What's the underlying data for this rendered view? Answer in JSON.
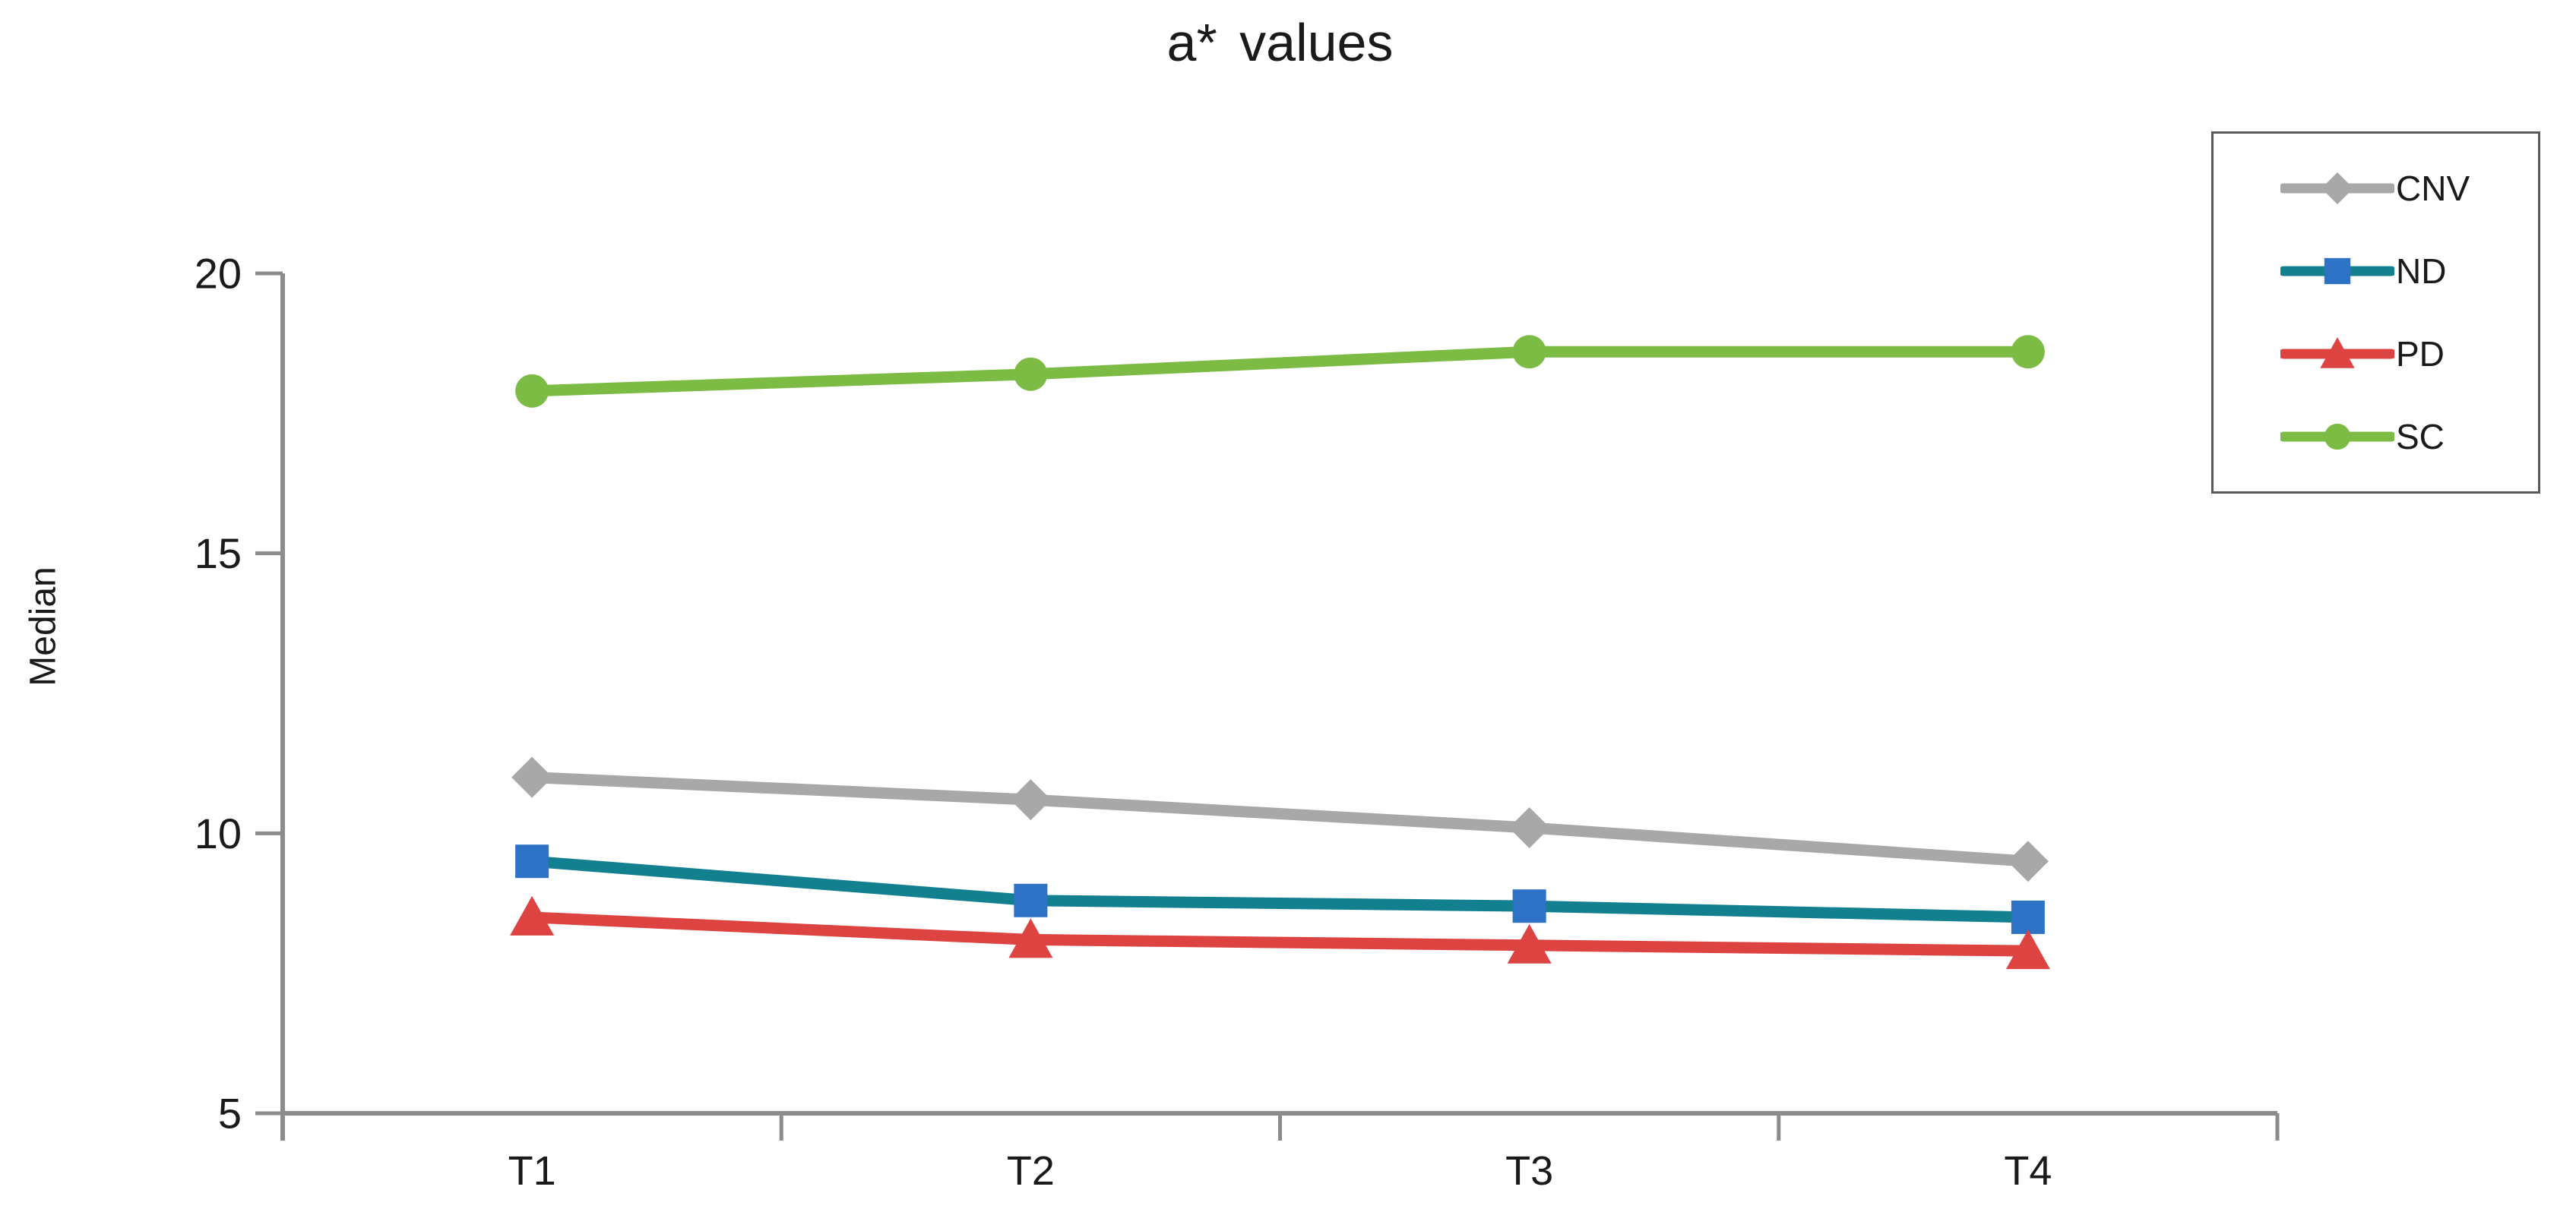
{
  "title": "a* values",
  "chart_data": {
    "type": "line",
    "title": "a* values",
    "xlabel": "",
    "ylabel": "Median",
    "categories": [
      "T1",
      "T2",
      "T3",
      "T4"
    ],
    "series": [
      {
        "name": "CNV",
        "color": "#A8A8A8",
        "marker": "diamond",
        "marker_color": "#A8A8A8",
        "values": [
          11.0,
          10.6,
          10.1,
          9.5
        ]
      },
      {
        "name": "ND",
        "color": "#13808F",
        "marker": "square",
        "marker_color": "#2E72C6",
        "values": [
          9.5,
          8.8,
          8.7,
          8.5
        ]
      },
      {
        "name": "PD",
        "color": "#DD4341",
        "marker": "triangle",
        "marker_color": "#DD4341",
        "values": [
          8.5,
          8.1,
          8.0,
          7.9
        ]
      },
      {
        "name": "SC",
        "color": "#7CBB44",
        "marker": "circle",
        "marker_color": "#7CBB44",
        "values": [
          17.9,
          18.2,
          18.6,
          18.6
        ]
      }
    ],
    "ylim": [
      5,
      20
    ],
    "yticks": [
      5,
      10,
      15,
      20
    ],
    "grid": false,
    "legend": {
      "position": "right",
      "entries": [
        "CNV",
        "ND",
        "PD",
        "SC"
      ]
    },
    "axis_color": "#8C8C8C",
    "text_color": "#1a1a1a"
  }
}
